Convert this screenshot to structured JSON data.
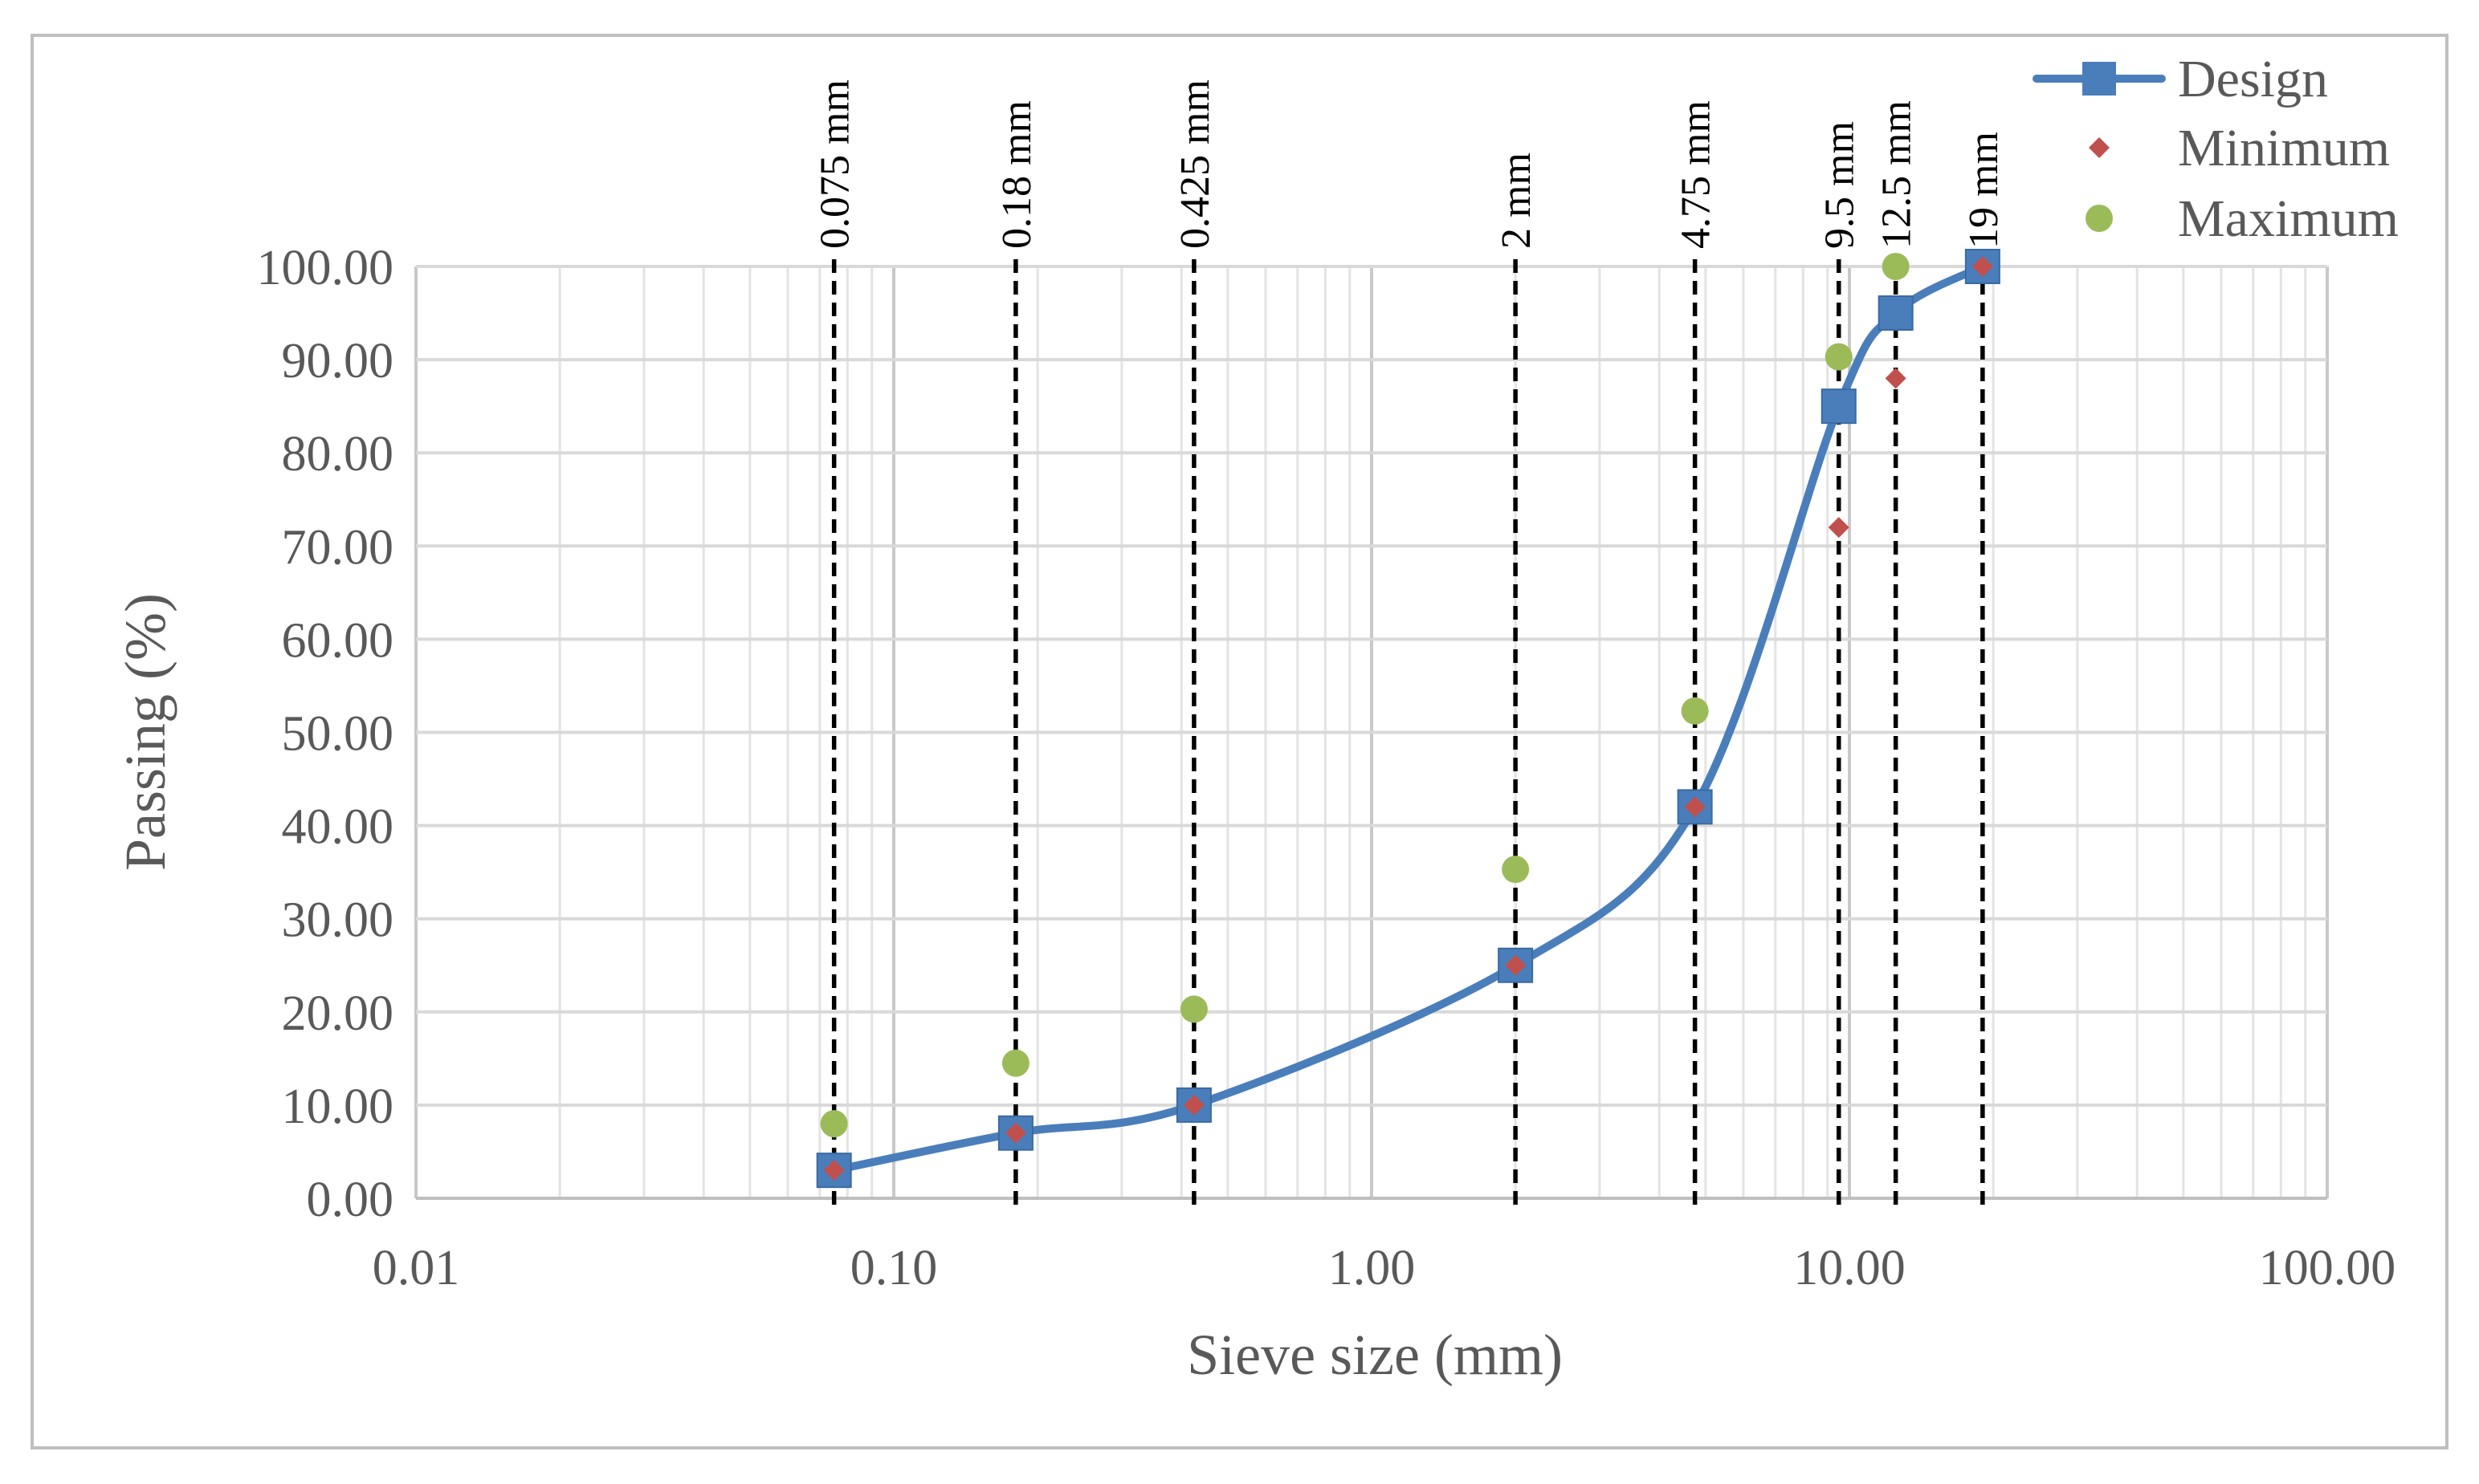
{
  "chart_data": {
    "type": "line",
    "xscale": "log",
    "xlabel": "Sieve size (mm)",
    "ylabel": "Passing (%)",
    "xlim": [
      0.01,
      100
    ],
    "ylim": [
      0,
      100
    ],
    "grid": true,
    "x_ticks": [
      {
        "value": 0.01,
        "label": "0.01"
      },
      {
        "value": 0.1,
        "label": "0.10"
      },
      {
        "value": 1,
        "label": "1.00"
      },
      {
        "value": 10,
        "label": "10.00"
      },
      {
        "value": 100,
        "label": "100.00"
      }
    ],
    "y_ticks": [
      {
        "value": 0,
        "label": "0.00"
      },
      {
        "value": 10,
        "label": "10.00"
      },
      {
        "value": 20,
        "label": "20.00"
      },
      {
        "value": 30,
        "label": "30.00"
      },
      {
        "value": 40,
        "label": "40.00"
      },
      {
        "value": 50,
        "label": "50.00"
      },
      {
        "value": 60,
        "label": "60.00"
      },
      {
        "value": 70,
        "label": "70.00"
      },
      {
        "value": 80,
        "label": "80.00"
      },
      {
        "value": 90,
        "label": "90.00"
      },
      {
        "value": 100,
        "label": "100.00"
      }
    ],
    "sieves": [
      {
        "value": 0.075,
        "label": "0.075 mm"
      },
      {
        "value": 0.18,
        "label": "0.18 mm"
      },
      {
        "value": 0.425,
        "label": "0.425 mm"
      },
      {
        "value": 2,
        "label": "2 mm"
      },
      {
        "value": 4.75,
        "label": "4.75 mm"
      },
      {
        "value": 9.5,
        "label": "9.5 mm"
      },
      {
        "value": 12.5,
        "label": "12.5 mm"
      },
      {
        "value": 19,
        "label": "19 mm"
      }
    ],
    "legend_position": "top-right",
    "series": [
      {
        "name": "Design",
        "style": "line-square",
        "color": "#4A7EBB",
        "smooth": true,
        "x": [
          0.075,
          0.18,
          0.425,
          2,
          4.75,
          9.5,
          12.5,
          19
        ],
        "y": [
          3,
          7,
          10,
          25,
          42,
          85,
          95,
          100
        ]
      },
      {
        "name": "Minimum",
        "style": "diamond",
        "color": "#C0504D",
        "x": [
          0.075,
          0.18,
          0.425,
          2,
          4.75,
          9.5,
          12.5,
          19
        ],
        "y": [
          3,
          7,
          10,
          25,
          42,
          72,
          88,
          100
        ]
      },
      {
        "name": "Maximum",
        "style": "circle",
        "color": "#9BBB59",
        "x": [
          0.075,
          0.18,
          0.425,
          2,
          4.75,
          9.5,
          12.5
        ],
        "y": [
          8,
          14.5,
          20.3,
          35.3,
          52.3,
          90.3,
          100
        ]
      }
    ]
  }
}
